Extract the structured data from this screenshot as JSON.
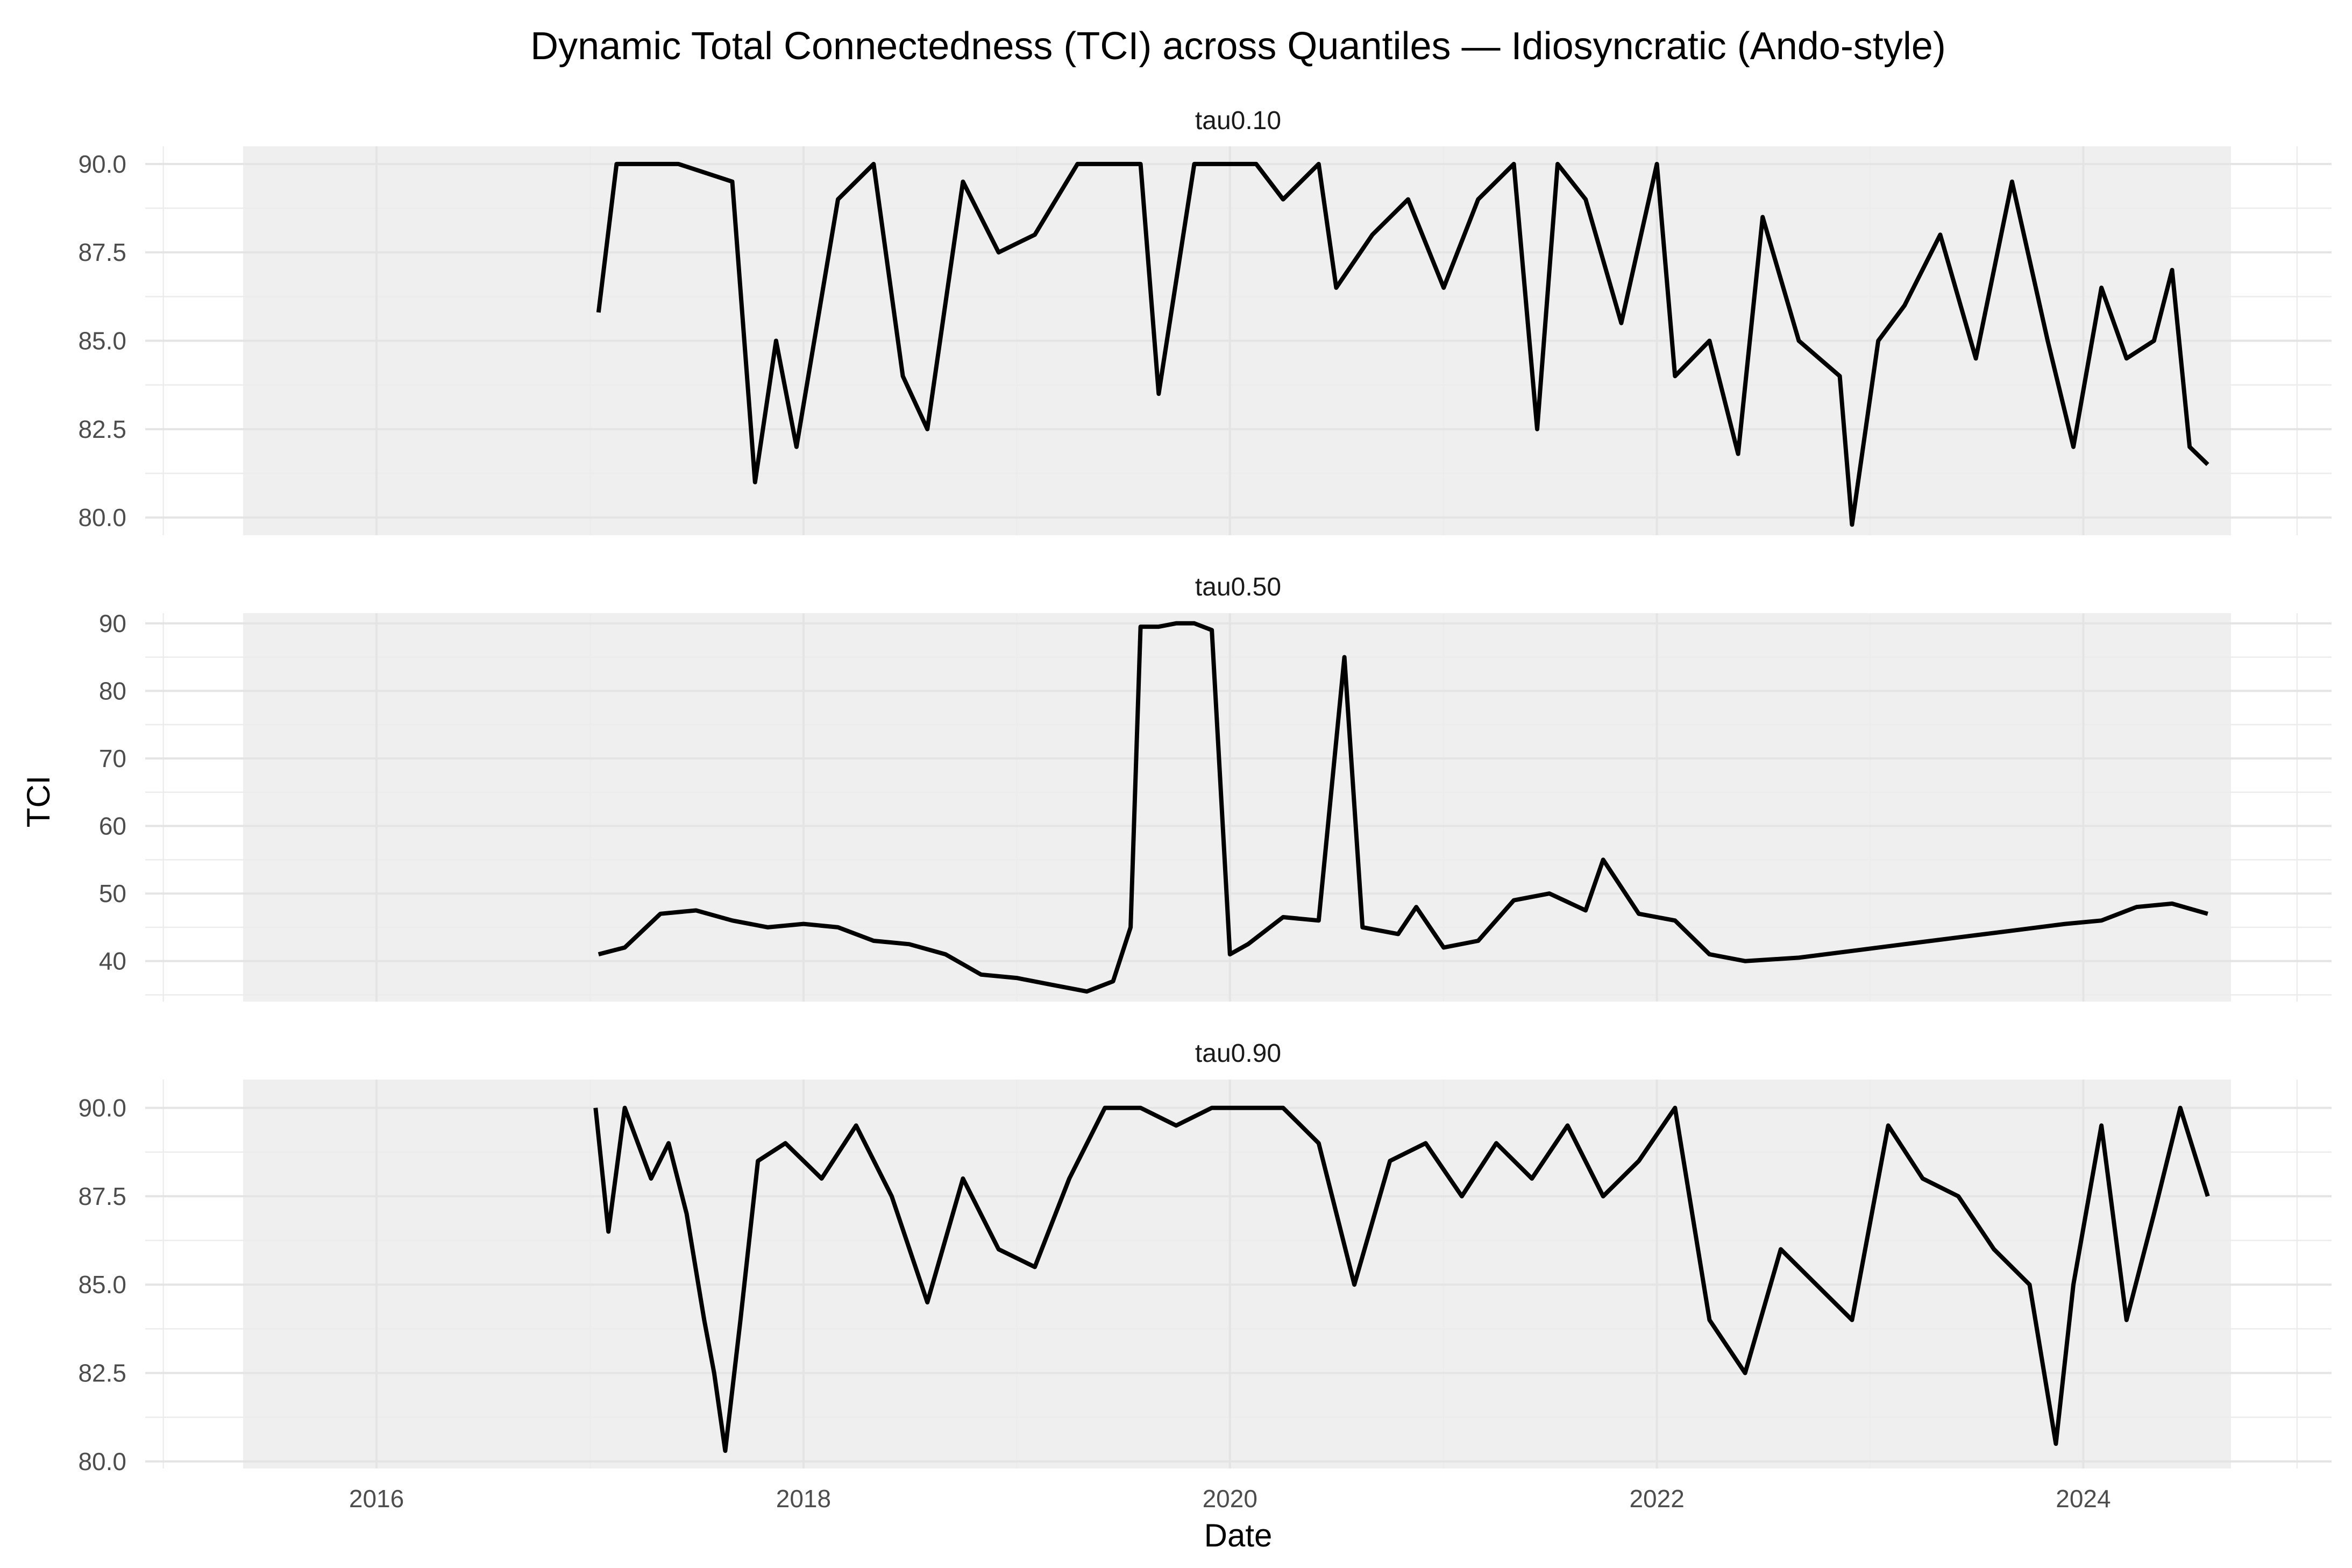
{
  "chart_data": {
    "type": "line",
    "title": "Dynamic Total Connectedness (TCI) across Quantiles — Idiosyncratic (Ando-style)",
    "xlabel": "Date",
    "ylabel": "TCI",
    "x_ticks": [
      "2016",
      "2018",
      "2020",
      "2022",
      "2024"
    ],
    "x_range": [
      "2014-12-01",
      "2025-03-01"
    ],
    "grid": true,
    "legend": "none",
    "line_color": "#000000",
    "panel_background": "#efefef",
    "panels": [
      {
        "name": "tau0.10",
        "ylim": [
          79.5,
          90.5
        ],
        "y_ticks": [
          "80.0",
          "82.5",
          "85.0",
          "87.5",
          "90.0"
        ],
        "y_tick_values": [
          80.0,
          82.5,
          85.0,
          87.5,
          90.0
        ],
        "x": [
          "2017-01-15",
          "2017-02-15",
          "2017-06-01",
          "2017-09-01",
          "2017-10-10",
          "2017-11-15",
          "2017-12-20",
          "2018-03-01",
          "2018-05-01",
          "2018-06-20",
          "2018-08-01",
          "2018-10-01",
          "2018-12-01",
          "2019-02-01",
          "2019-04-15",
          "2019-08-01",
          "2019-09-01",
          "2019-11-01",
          "2020-01-01",
          "2020-02-15",
          "2020-04-01",
          "2020-06-01",
          "2020-07-01",
          "2020-09-01",
          "2020-11-01",
          "2021-01-01",
          "2021-03-01",
          "2021-05-01",
          "2021-06-10",
          "2021-07-15",
          "2021-09-01",
          "2021-11-01",
          "2022-01-01",
          "2022-02-01",
          "2022-04-01",
          "2022-05-20",
          "2022-07-01",
          "2022-09-01",
          "2022-11-10",
          "2022-12-01",
          "2023-01-15",
          "2023-03-01",
          "2023-05-01",
          "2023-07-01",
          "2023-09-01",
          "2023-11-01",
          "2023-12-15",
          "2024-02-01",
          "2024-03-15",
          "2024-05-01",
          "2024-06-01",
          "2024-07-01",
          "2024-08-01"
        ],
        "values": [
          85.8,
          90.0,
          90.0,
          89.5,
          81.0,
          85.0,
          82.0,
          89.0,
          90.0,
          84.0,
          82.5,
          89.5,
          87.5,
          88.0,
          90.0,
          90.0,
          83.5,
          90.0,
          90.0,
          90.0,
          89.0,
          90.0,
          86.5,
          88.0,
          89.0,
          86.5,
          89.0,
          90.0,
          82.5,
          90.0,
          89.0,
          85.5,
          90.0,
          84.0,
          85.0,
          81.8,
          88.5,
          85.0,
          84.0,
          79.8,
          85.0,
          86.0,
          88.0,
          84.5,
          89.5,
          85.0,
          82.0,
          86.5,
          84.5,
          85.0,
          87.0,
          82.0,
          81.5
        ]
      },
      {
        "name": "tau0.50",
        "ylim": [
          34,
          91.5
        ],
        "y_ticks": [
          "40",
          "50",
          "60",
          "70",
          "80",
          "90"
        ],
        "y_tick_values": [
          40,
          50,
          60,
          70,
          80,
          90
        ],
        "x": [
          "2017-01-15",
          "2017-03-01",
          "2017-05-01",
          "2017-07-01",
          "2017-09-01",
          "2017-11-01",
          "2018-01-01",
          "2018-03-01",
          "2018-05-01",
          "2018-07-01",
          "2018-09-01",
          "2018-11-01",
          "2019-01-01",
          "2019-03-01",
          "2019-05-01",
          "2019-06-15",
          "2019-07-15",
          "2019-08-01",
          "2019-09-01",
          "2019-10-01",
          "2019-11-01",
          "2019-12-01",
          "2020-01-01",
          "2020-02-01",
          "2020-04-01",
          "2020-06-01",
          "2020-07-15",
          "2020-08-15",
          "2020-10-15",
          "2020-11-15",
          "2021-01-01",
          "2021-03-01",
          "2021-05-01",
          "2021-07-01",
          "2021-09-01",
          "2021-10-01",
          "2021-12-01",
          "2022-02-01",
          "2022-04-01",
          "2022-06-01",
          "2022-09-01",
          "2022-12-01",
          "2023-03-01",
          "2023-06-01",
          "2023-09-01",
          "2023-12-01",
          "2024-02-01",
          "2024-04-01",
          "2024-06-01",
          "2024-08-01"
        ],
        "values": [
          41.0,
          42.0,
          47.0,
          47.5,
          46.0,
          45.0,
          45.5,
          45.0,
          43.0,
          42.5,
          41.0,
          38.0,
          37.5,
          36.5,
          35.5,
          37.0,
          45.0,
          89.5,
          89.5,
          90.0,
          90.0,
          89.0,
          41.0,
          42.5,
          46.5,
          46.0,
          85.0,
          45.0,
          44.0,
          48.0,
          42.0,
          43.0,
          49.0,
          50.0,
          47.5,
          55.0,
          47.0,
          46.0,
          41.0,
          40.0,
          40.5,
          41.5,
          42.5,
          43.5,
          44.5,
          45.5,
          46.0,
          48.0,
          48.5,
          47.0
        ]
      },
      {
        "name": "tau0.90",
        "ylim": [
          79.8,
          90.8
        ],
        "y_ticks": [
          "80.0",
          "82.5",
          "85.0",
          "87.5",
          "90.0"
        ],
        "y_tick_values": [
          80.0,
          82.5,
          85.0,
          87.5,
          90.0
        ],
        "x": [
          "2017-01-10",
          "2017-02-01",
          "2017-03-01",
          "2017-04-15",
          "2017-05-15",
          "2017-06-15",
          "2017-07-15",
          "2017-08-01",
          "2017-08-20",
          "2017-09-15",
          "2017-10-15",
          "2017-12-01",
          "2018-02-01",
          "2018-04-01",
          "2018-06-01",
          "2018-08-01",
          "2018-10-01",
          "2018-12-01",
          "2019-02-01",
          "2019-04-01",
          "2019-06-01",
          "2019-08-01",
          "2019-10-01",
          "2019-12-01",
          "2020-02-01",
          "2020-04-01",
          "2020-06-01",
          "2020-08-01",
          "2020-10-01",
          "2020-12-01",
          "2021-02-01",
          "2021-04-01",
          "2021-06-01",
          "2021-08-01",
          "2021-10-01",
          "2021-12-01",
          "2022-02-01",
          "2022-04-01",
          "2022-06-01",
          "2022-08-01",
          "2022-10-01",
          "2022-12-01",
          "2023-02-01",
          "2023-04-01",
          "2023-06-01",
          "2023-08-01",
          "2023-10-01",
          "2023-11-15",
          "2023-12-15",
          "2024-02-01",
          "2024-03-15",
          "2024-05-01",
          "2024-06-15",
          "2024-08-01"
        ],
        "values": [
          90.0,
          86.5,
          90.0,
          88.0,
          89.0,
          87.0,
          84.0,
          82.5,
          80.3,
          84.0,
          88.5,
          89.0,
          88.0,
          89.5,
          87.5,
          84.5,
          88.0,
          86.0,
          85.5,
          88.0,
          90.0,
          90.0,
          89.5,
          90.0,
          90.0,
          90.0,
          89.0,
          85.0,
          88.5,
          89.0,
          87.5,
          89.0,
          88.0,
          89.5,
          87.5,
          88.5,
          90.0,
          84.0,
          82.5,
          86.0,
          85.0,
          84.0,
          89.5,
          88.0,
          87.5,
          86.0,
          85.0,
          80.5,
          85.0,
          89.5,
          84.0,
          87.0,
          90.0,
          87.5
        ]
      }
    ]
  }
}
